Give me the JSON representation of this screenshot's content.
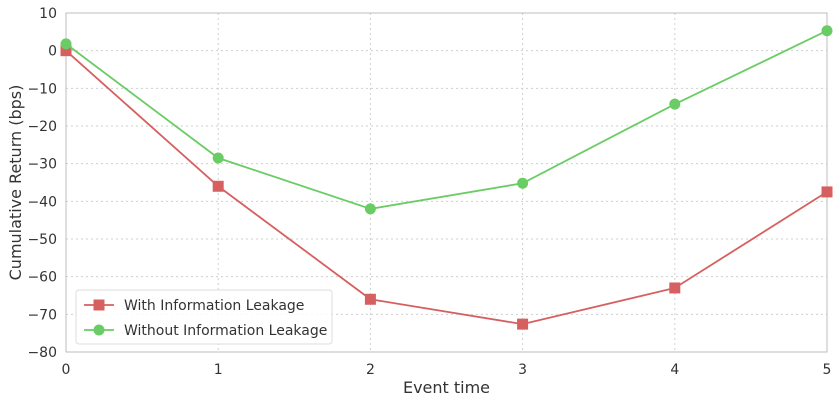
{
  "chart_data": {
    "type": "line",
    "title": "",
    "xlabel": "Event time",
    "ylabel": "Cumulative Return (bps)",
    "xlim": [
      0,
      5
    ],
    "ylim": [
      -80,
      10
    ],
    "x_ticks": [
      0,
      1,
      2,
      3,
      4,
      5
    ],
    "x_tick_labels": [
      "0",
      "1",
      "2",
      "3",
      "4",
      "5"
    ],
    "y_ticks": [
      10,
      0,
      -10,
      -20,
      -30,
      -40,
      -50,
      -60,
      -70,
      -80
    ],
    "y_tick_labels": [
      "10",
      "0",
      "−10",
      "−20",
      "−30",
      "−40",
      "−50",
      "−60",
      "−70",
      "−80"
    ],
    "grid": true,
    "legend_position": "lower-left",
    "x": [
      0,
      1,
      2,
      3,
      4,
      5
    ],
    "series": [
      {
        "name": "With Information Leakage",
        "marker": "square",
        "color": "#d65f5f",
        "values": [
          0,
          -36,
          -66,
          -72.6,
          -63,
          -37.5
        ]
      },
      {
        "name": "Without Information Leakage",
        "marker": "circle",
        "color": "#6acc65",
        "values": [
          1.8,
          -28.5,
          -42,
          -35.2,
          -14.2,
          5.3
        ]
      }
    ]
  }
}
